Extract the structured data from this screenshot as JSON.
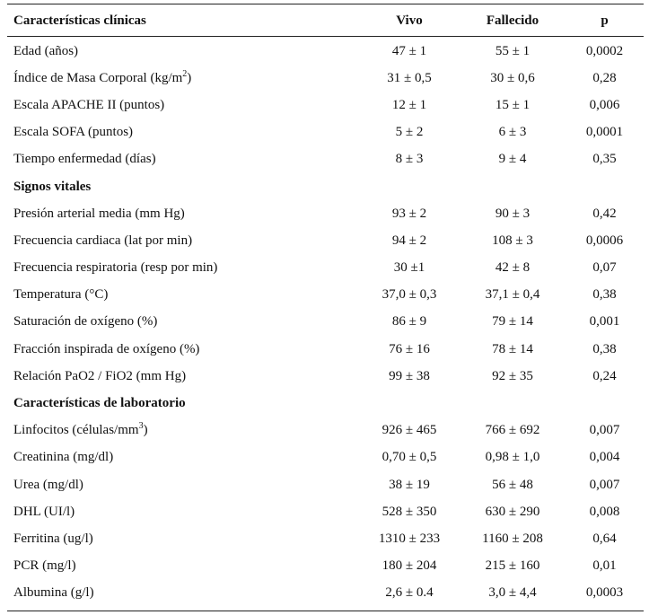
{
  "headers": {
    "label": "Características clínicas",
    "vivo": "Vivo",
    "fallecido": "Fallecido",
    "p": "p"
  },
  "rows": [
    {
      "label": "Edad (años)",
      "vivo": "47 ± 1",
      "fallecido": "55 ± 1",
      "p": "0,0002"
    },
    {
      "label": "Índice de Masa Corporal (kg/m",
      "label_sup": "2",
      "label_tail": ")",
      "vivo": "31 ± 0,5",
      "fallecido": "30 ± 0,6",
      "p": "0,28"
    },
    {
      "label": "Escala APACHE II (puntos)",
      "vivo": "12 ± 1",
      "fallecido": "15 ± 1",
      "p": "0,006"
    },
    {
      "label": "Escala SOFA (puntos)",
      "vivo": "5 ± 2",
      "fallecido": "6 ± 3",
      "p": "0,0001"
    },
    {
      "label": "Tiempo enfermedad (días)",
      "vivo": "8 ± 3",
      "fallecido": "9 ± 4",
      "p": "0,35"
    }
  ],
  "section_vitals": "Signos vitales",
  "vitals": [
    {
      "label": "Presión arterial media (mm Hg)",
      "vivo": "93 ± 2",
      "fallecido": "90 ± 3",
      "p": "0,42"
    },
    {
      "label": "Frecuencia cardiaca (lat por min)",
      "vivo": "94 ± 2",
      "fallecido": "108 ± 3",
      "p": "0,0006"
    },
    {
      "label": "Frecuencia respiratoria (resp por min)",
      "vivo": "30 ±1",
      "fallecido": "42 ± 8",
      "p": "0,07"
    },
    {
      "label": "Temperatura (°C)",
      "vivo": "37,0 ± 0,3",
      "fallecido": "37,1 ± 0,4",
      "p": "0,38"
    },
    {
      "label": "Saturación de oxígeno (%)",
      "vivo": "86 ± 9",
      "fallecido": "79 ± 14",
      "p": "0,001"
    },
    {
      "label": "Fracción inspirada de oxígeno (%)",
      "vivo": "76 ± 16",
      "fallecido": "78 ± 14",
      "p": "0,38"
    },
    {
      "label": "Relación PaO2 / FiO2 (mm Hg)",
      "vivo": "99 ± 38",
      "fallecido": "92 ± 35",
      "p": "0,24"
    }
  ],
  "section_lab": "Características de laboratorio",
  "lab": [
    {
      "label": "Linfocitos (células/mm",
      "label_sup": "3",
      "label_tail": ")",
      "vivo": "926 ± 465",
      "fallecido": "766 ± 692",
      "p": "0,007"
    },
    {
      "label": "Creatinina (mg/dl)",
      "vivo": "0,70 ± 0,5",
      "fallecido": "0,98 ± 1,0",
      "p": "0,004"
    },
    {
      "label": "Urea (mg/dl)",
      "vivo": "38 ± 19",
      "fallecido": "56 ± 48",
      "p": "0,007"
    },
    {
      "label": "DHL (UI/l)",
      "vivo": "528 ± 350",
      "fallecido": "630 ± 290",
      "p": "0,008"
    },
    {
      "label": "Ferritina (ug/l)",
      "vivo": "1310 ± 233",
      "fallecido": "1160 ± 208",
      "p": "0,64"
    },
    {
      "label": "PCR (mg/l)",
      "vivo": "180 ± 204",
      "fallecido": "215 ± 160",
      "p": "0,01"
    },
    {
      "label": "Albumina (g/l)",
      "vivo": "2,6 ± 0.4",
      "fallecido": "3,0 ± 4,4",
      "p": "0,0003"
    }
  ]
}
